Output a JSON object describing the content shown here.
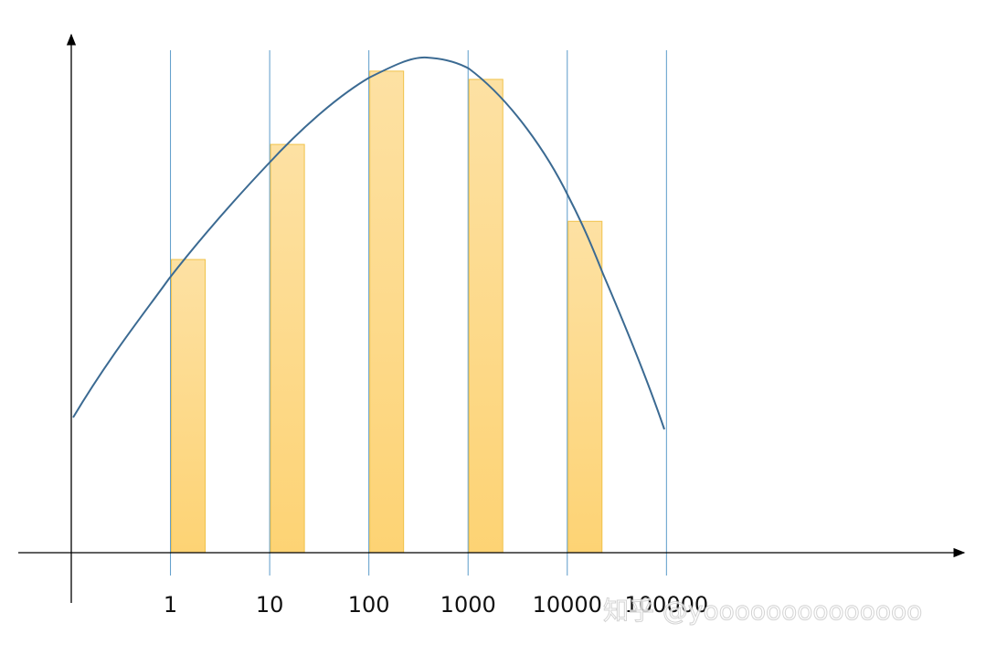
{
  "chart_data": {
    "type": "histogram",
    "bins": [
      1,
      10,
      100,
      1000,
      10000,
      100000
    ],
    "counts": [
      56.8,
      79.1,
      93.3,
      91.7,
      64.2
    ],
    "xscale": "log",
    "xlim": [
      0.1,
      100000000
    ],
    "ylim": [
      0,
      100
    ],
    "xticks": [
      1,
      10,
      100,
      1000,
      10000,
      100000
    ],
    "color": "#fdd98a",
    "watermark": "知乎 @yoooooooooooooo"
  }
}
